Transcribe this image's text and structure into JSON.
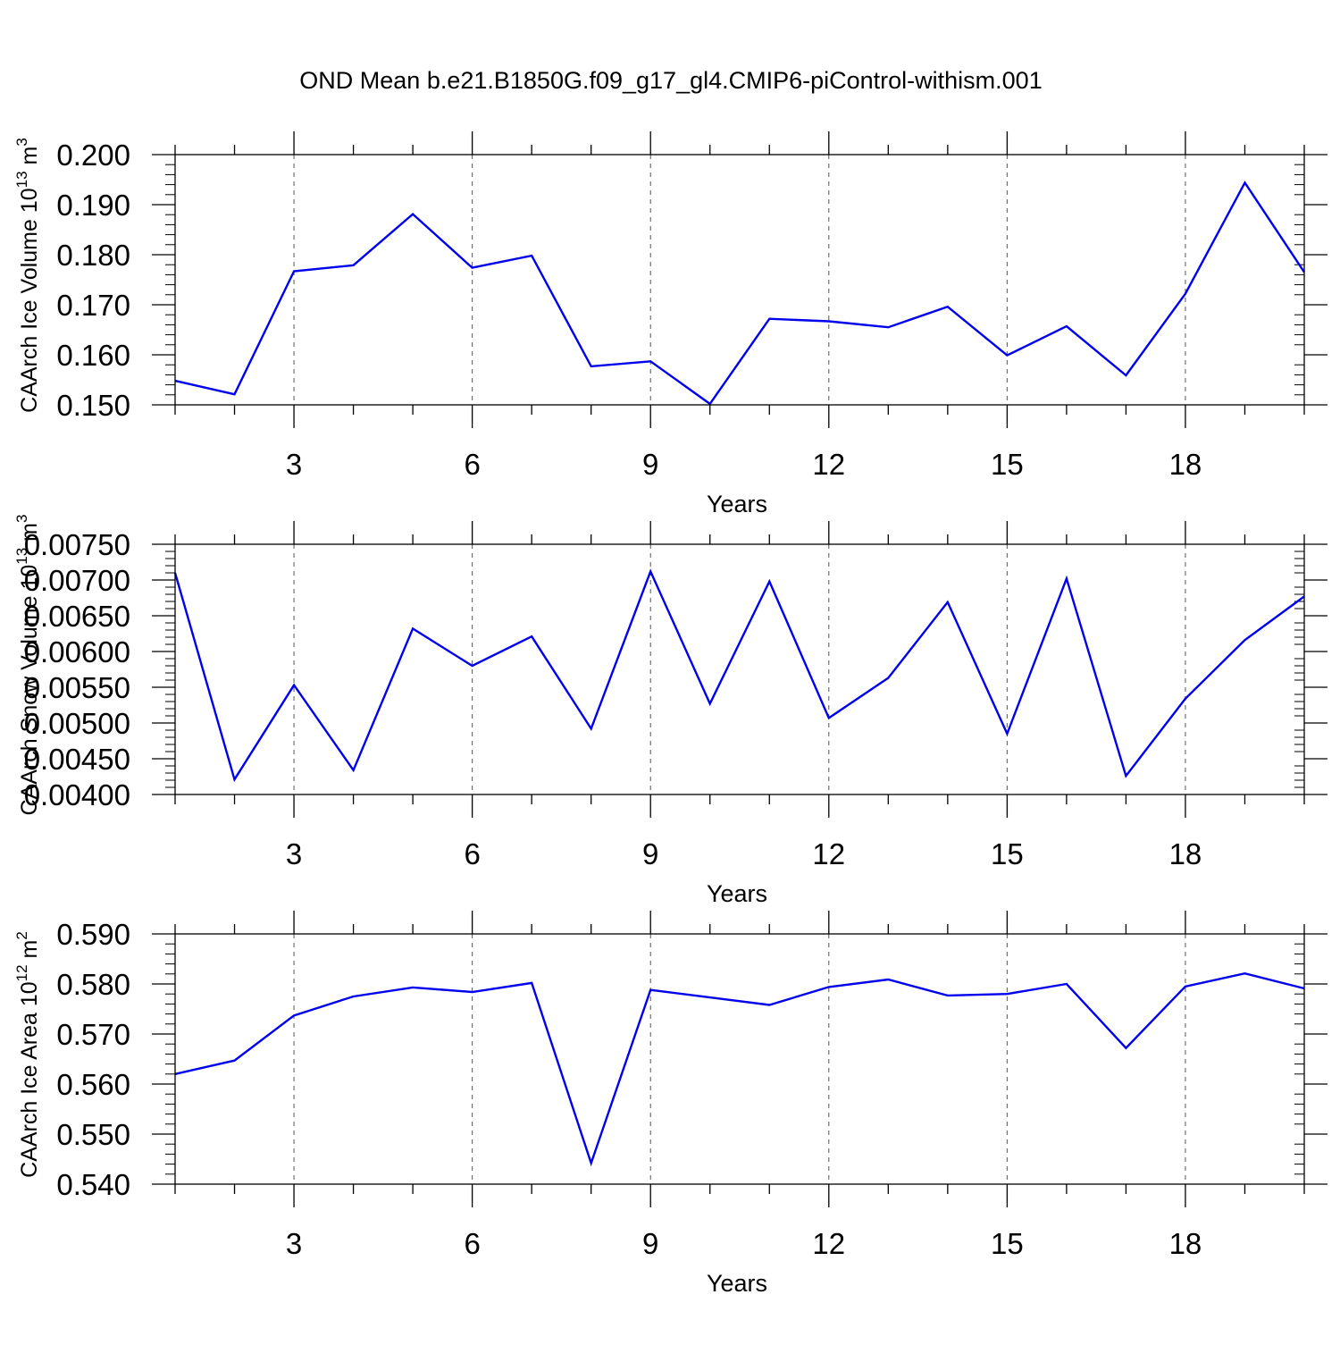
{
  "title": "OND Mean b.e21.B1850G.f09_g17_gl4.CMIP6-piControl-withism.001",
  "style": {
    "line_color": "#0000ee",
    "axis_color": "#000000",
    "grid_color": "#555555"
  },
  "chart_data": [
    {
      "type": "line",
      "xlabel": "Years",
      "ylabel": {
        "main": "CAArch Ice Volume 10",
        "exp": "13",
        "unit": " m",
        "unit_exp": "3"
      },
      "xlim": [
        1,
        20
      ],
      "ylim": [
        0.15,
        0.2
      ],
      "xticks": [
        "3",
        "6",
        "9",
        "12",
        "15",
        "18"
      ],
      "yticks": [
        "0.200",
        "0.190",
        "0.180",
        "0.170",
        "0.160",
        "0.150"
      ],
      "grid": "vertical-dashed",
      "x": [
        1,
        2,
        3,
        4,
        5,
        6,
        7,
        8,
        9,
        10,
        11,
        12,
        13,
        14,
        15,
        16,
        17,
        18,
        19,
        20
      ],
      "values": [
        0.1548,
        0.1521,
        0.1767,
        0.1779,
        0.1881,
        0.1774,
        0.1798,
        0.1577,
        0.1587,
        0.1502,
        0.1672,
        0.1667,
        0.1655,
        0.1696,
        0.1599,
        0.1657,
        0.1559,
        0.1722,
        0.1944,
        0.1765
      ]
    },
    {
      "type": "line",
      "xlabel": "Years",
      "ylabel": {
        "main": "CAArch Snow Volume 10",
        "exp": "13",
        "unit": " m",
        "unit_exp": "3"
      },
      "xlim": [
        1,
        20
      ],
      "ylim": [
        0.004,
        0.0075
      ],
      "xticks": [
        "3",
        "6",
        "9",
        "12",
        "15",
        "18"
      ],
      "yticks": [
        "0.00750",
        "0.00700",
        "0.00650",
        "0.00600",
        "0.00550",
        "0.00500",
        "0.00450",
        "0.00400"
      ],
      "grid": "vertical-dashed",
      "x": [
        1,
        2,
        3,
        4,
        5,
        6,
        7,
        8,
        9,
        10,
        11,
        12,
        13,
        14,
        15,
        16,
        17,
        18,
        19,
        20
      ],
      "values": [
        0.0071,
        0.00421,
        0.00553,
        0.00434,
        0.00632,
        0.0058,
        0.00621,
        0.00492,
        0.00712,
        0.00527,
        0.00698,
        0.00507,
        0.00563,
        0.00669,
        0.00485,
        0.00702,
        0.00426,
        0.00534,
        0.00616,
        0.00677
      ]
    },
    {
      "type": "line",
      "xlabel": "Years",
      "ylabel": {
        "main": "CAArch Ice Area 10",
        "exp": "12",
        "unit": " m",
        "unit_exp": "2"
      },
      "xlim": [
        1,
        20
      ],
      "ylim": [
        0.54,
        0.59
      ],
      "xticks": [
        "3",
        "6",
        "9",
        "12",
        "15",
        "18"
      ],
      "yticks": [
        "0.590",
        "0.580",
        "0.570",
        "0.560",
        "0.550",
        "0.540"
      ],
      "grid": "vertical-dashed",
      "x": [
        1,
        2,
        3,
        4,
        5,
        6,
        7,
        8,
        9,
        10,
        11,
        12,
        13,
        14,
        15,
        16,
        17,
        18,
        19,
        20
      ],
      "values": [
        0.562,
        0.5647,
        0.5737,
        0.5775,
        0.5793,
        0.5784,
        0.5802,
        0.5442,
        0.5788,
        0.5773,
        0.5758,
        0.5794,
        0.5809,
        0.5777,
        0.578,
        0.58,
        0.5672,
        0.5795,
        0.5821,
        0.5791
      ]
    }
  ]
}
